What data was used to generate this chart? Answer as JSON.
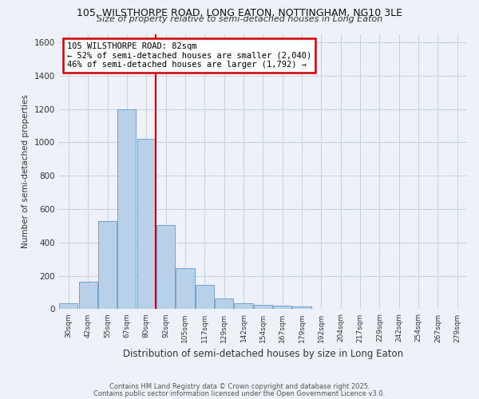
{
  "title1": "105, WILSTHORPE ROAD, LONG EATON, NOTTINGHAM, NG10 3LE",
  "title2": "Size of property relative to semi-detached houses in Long Eaton",
  "xlabel": "Distribution of semi-detached houses by size in Long Eaton",
  "ylabel": "Number of semi-detached properties",
  "categories": [
    "30sqm",
    "42sqm",
    "55sqm",
    "67sqm",
    "80sqm",
    "92sqm",
    "105sqm",
    "117sqm",
    "129sqm",
    "142sqm",
    "154sqm",
    "167sqm",
    "179sqm",
    "192sqm",
    "204sqm",
    "217sqm",
    "229sqm",
    "242sqm",
    "254sqm",
    "267sqm",
    "279sqm"
  ],
  "values": [
    35,
    165,
    530,
    1200,
    1020,
    505,
    245,
    145,
    65,
    35,
    25,
    20,
    15,
    0,
    0,
    0,
    0,
    0,
    0,
    0,
    0
  ],
  "property_label": "105 WILSTHORPE ROAD: 82sqm",
  "smaller_pct": 52,
  "smaller_count": 2040,
  "larger_pct": 46,
  "larger_count": 1792,
  "vline_bin_index": 4,
  "bar_color": "#b8d0e8",
  "bar_edge_color": "#6699cc",
  "vline_color": "#cc0000",
  "annotation_box_edge": "#cc0000",
  "ylim": [
    0,
    1650
  ],
  "yticks": [
    0,
    200,
    400,
    600,
    800,
    1000,
    1200,
    1400,
    1600
  ],
  "footnote1": "Contains HM Land Registry data © Crown copyright and database right 2025.",
  "footnote2": "Contains public sector information licensed under the Open Government Licence v3.0.",
  "bg_color": "#eef2f8",
  "grid_color": "#c8d4e4",
  "title1_fontsize": 9,
  "title2_fontsize": 8,
  "xlabel_fontsize": 8.5,
  "ylabel_fontsize": 7.5
}
